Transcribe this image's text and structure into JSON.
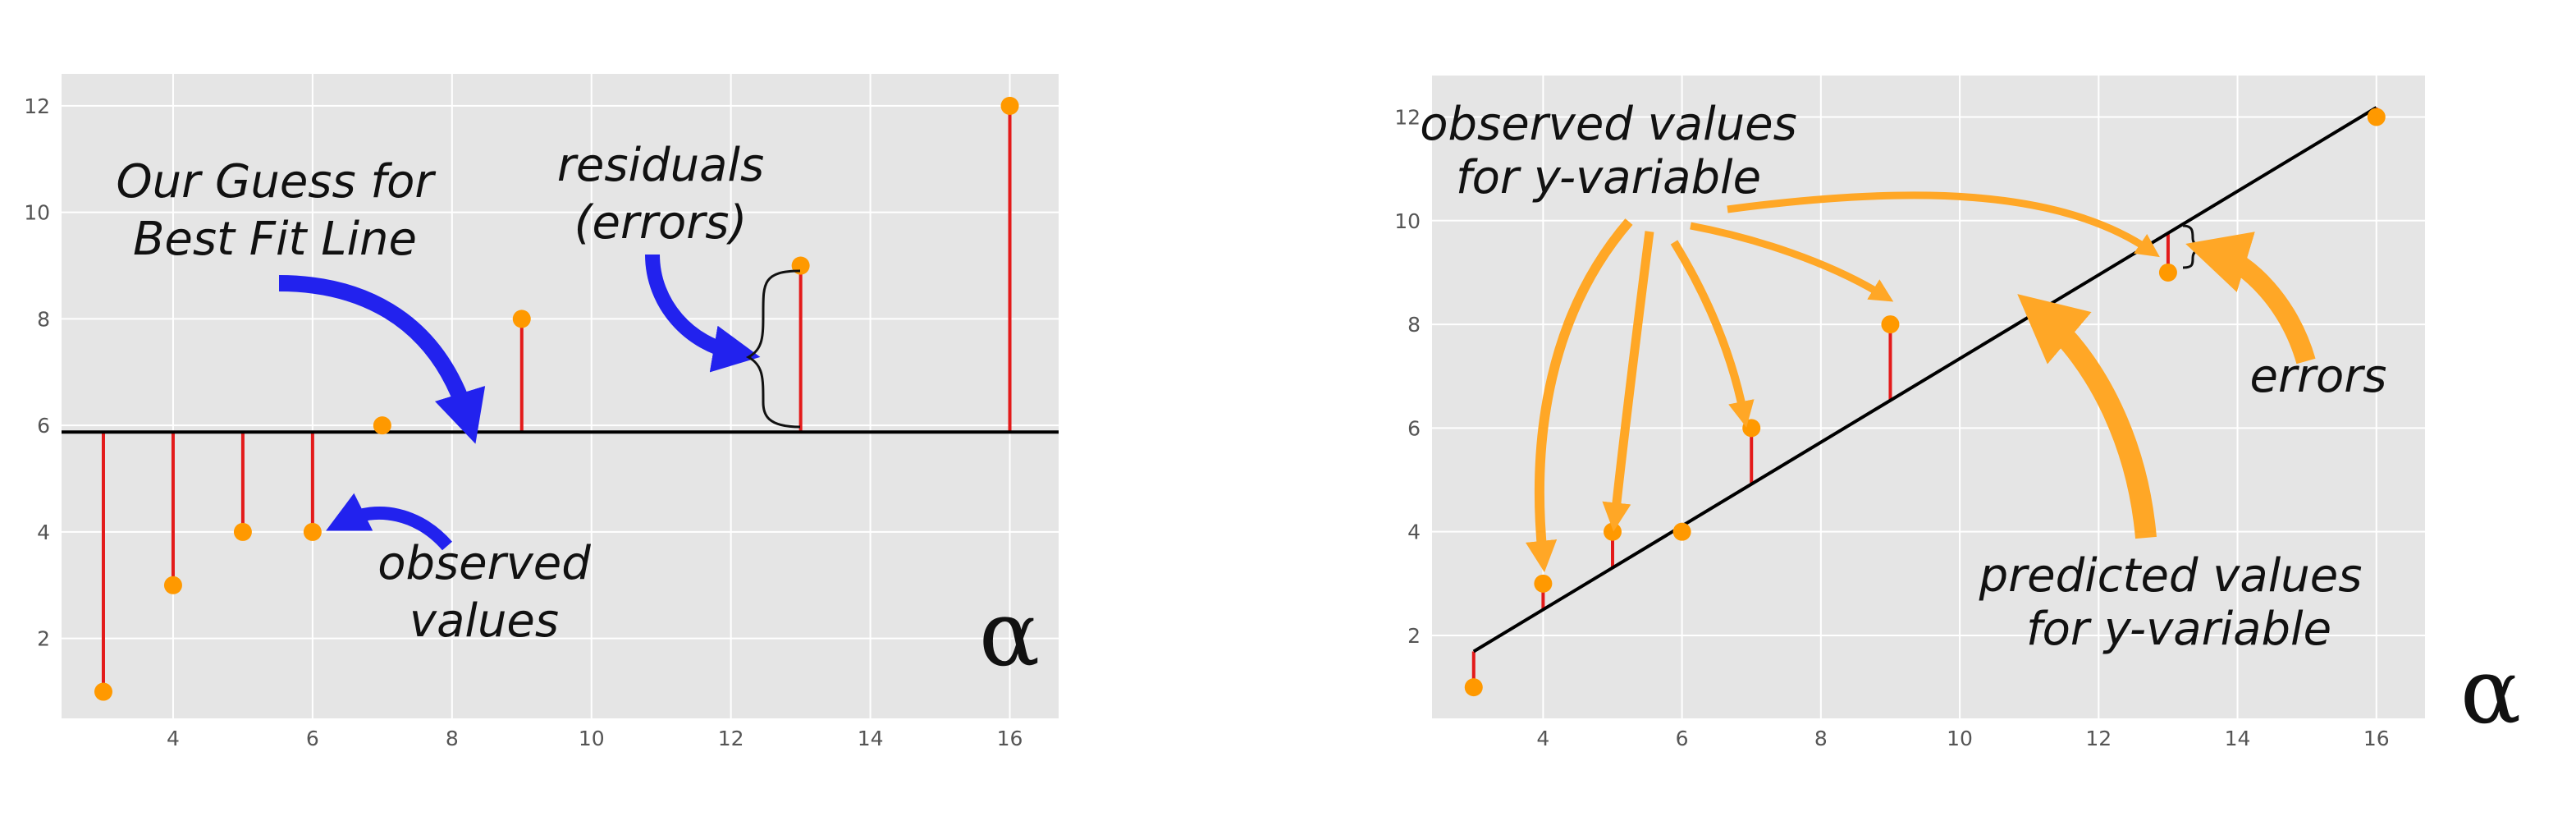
{
  "chart_data": [
    {
      "type": "scatter",
      "points": [
        {
          "x": 3,
          "y": 1
        },
        {
          "x": 4,
          "y": 3
        },
        {
          "x": 5,
          "y": 4
        },
        {
          "x": 6,
          "y": 4
        },
        {
          "x": 7,
          "y": 6
        },
        {
          "x": 9,
          "y": 8
        },
        {
          "x": 13,
          "y": 9
        },
        {
          "x": 16,
          "y": 12
        }
      ],
      "fit_line": {
        "intercept": 5.875,
        "slope": 0
      },
      "xlim": [
        2.4,
        16.7
      ],
      "ylim": [
        0.5,
        12.6
      ],
      "xticks": [
        4,
        6,
        8,
        10,
        12,
        14,
        16
      ],
      "yticks": [
        2,
        4,
        6,
        8,
        10,
        12
      ],
      "grid": true,
      "colors": {
        "points": "#ff9900",
        "residuals": "#e31a1a",
        "line": "#000000",
        "arrows": "#2222ee",
        "background": "#e5e5e5"
      },
      "annotations": {
        "guess_line1": "Our Guess for",
        "guess_line2": "Best Fit Line",
        "residuals_line1": "residuals",
        "residuals_line2": "(errors)",
        "observed_line1": "observed",
        "observed_line2": "values"
      },
      "logo": "α"
    },
    {
      "type": "scatter",
      "points": [
        {
          "x": 3,
          "y": 1
        },
        {
          "x": 4,
          "y": 3
        },
        {
          "x": 5,
          "y": 4
        },
        {
          "x": 6,
          "y": 4
        },
        {
          "x": 7,
          "y": 6
        },
        {
          "x": 9,
          "y": 8
        },
        {
          "x": 13,
          "y": 9
        },
        {
          "x": 16,
          "y": 12
        }
      ],
      "fit_line": {
        "intercept": -0.73,
        "slope": 0.807
      },
      "xlim": [
        2.4,
        16.7
      ],
      "ylim": [
        0.4,
        12.8
      ],
      "xticks": [
        4,
        6,
        8,
        10,
        12,
        14,
        16
      ],
      "yticks": [
        2,
        4,
        6,
        8,
        10,
        12
      ],
      "grid": true,
      "colors": {
        "points": "#ff9900",
        "residuals": "#e31a1a",
        "line": "#000000",
        "arrows": "#ffa726",
        "background": "#e5e5e5"
      },
      "annotations": {
        "observed_line1": "observed values",
        "observed_line2": "for y-variable",
        "predicted_line1": "predicted values",
        "predicted_line2": "for y-variable",
        "errors": "errors"
      },
      "logo": "α"
    }
  ]
}
